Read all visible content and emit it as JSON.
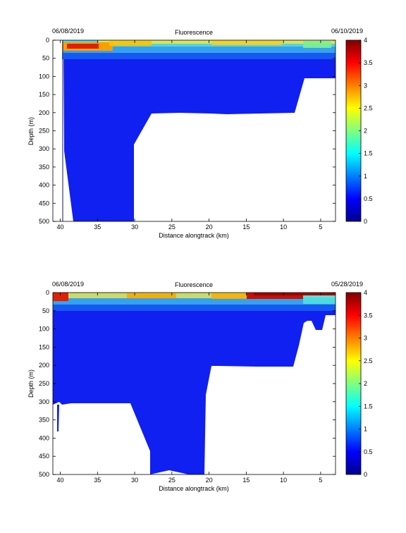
{
  "chart_data": [
    {
      "type": "heatmap",
      "title": "Fluorescence",
      "start_date": "06/08/2019",
      "end_date": "06/10/2019",
      "xlabel": "Distance alongtrack (km)",
      "ylabel": "Depth (m)",
      "xlim": [
        41,
        3
      ],
      "ylim": [
        0,
        500
      ],
      "x_ticks": [
        40,
        35,
        30,
        25,
        20,
        15,
        10,
        5
      ],
      "y_ticks": [
        0,
        50,
        100,
        150,
        200,
        250,
        300,
        350,
        400,
        450,
        500
      ],
      "colorbar": {
        "range": [
          0,
          4
        ],
        "ticks": [
          "0",
          "0.5",
          "1",
          "1.5",
          "2",
          "2.5",
          "3",
          "3.5",
          "4"
        ]
      },
      "data_coverage_max_depth": [
        [
          40,
          500
        ],
        [
          39.5,
          310
        ],
        [
          38.5,
          500
        ],
        [
          30,
          500
        ],
        [
          30,
          285
        ],
        [
          27,
          210
        ],
        [
          26,
          205
        ],
        [
          21,
          205
        ],
        [
          14,
          205
        ],
        [
          9,
          200
        ],
        [
          8,
          110
        ],
        [
          3.5,
          110
        ]
      ],
      "fluorescence_layers": [
        {
          "distance_range": [
            40,
            35
          ],
          "depth_range": [
            8,
            24
          ],
          "value": 3.8
        },
        {
          "distance_range": [
            40,
            3.5
          ],
          "depth_range": [
            0,
            35
          ],
          "value": 1.6
        },
        {
          "distance_range": [
            40,
            3.5
          ],
          "depth_range": [
            35,
            500
          ],
          "value": 0.4
        }
      ]
    },
    {
      "type": "heatmap",
      "title": "Fluorescence",
      "start_date": "06/08/2019",
      "end_date": "05/28/2019",
      "xlabel": "Distance alongtrack (km)",
      "ylabel": "Depth (m)",
      "xlim": [
        41,
        3
      ],
      "ylim": [
        0,
        500
      ],
      "x_ticks": [
        40,
        35,
        30,
        25,
        20,
        15,
        10,
        5
      ],
      "y_ticks": [
        0,
        50,
        100,
        150,
        200,
        250,
        300,
        350,
        400,
        450,
        500
      ],
      "colorbar": {
        "range": [
          0,
          4
        ],
        "ticks": [
          "0",
          "0.5",
          "1",
          "1.5",
          "2",
          "2.5",
          "3",
          "3.5",
          "4"
        ]
      },
      "data_coverage_max_depth": [
        [
          41,
          305
        ],
        [
          30,
          305
        ],
        [
          27.5,
          500
        ],
        [
          21,
          500
        ],
        [
          21,
          280
        ],
        [
          20,
          205
        ],
        [
          9,
          205
        ],
        [
          9,
          150
        ],
        [
          8.5,
          80
        ],
        [
          3,
          50
        ]
      ],
      "fluorescence_layers": [
        {
          "distance_range": [
            16,
            5
          ],
          "depth_range": [
            0,
            10
          ],
          "value": 3.9
        },
        {
          "distance_range": [
            41,
            3
          ],
          "depth_range": [
            0,
            30
          ],
          "value": 1.8
        },
        {
          "distance_range": [
            41,
            3
          ],
          "depth_range": [
            30,
            500
          ],
          "value": 0.4
        }
      ]
    }
  ]
}
